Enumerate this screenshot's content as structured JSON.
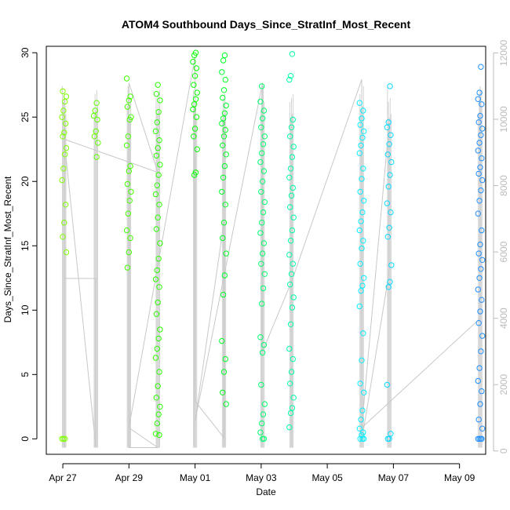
{
  "chart_data": {
    "type": "scatter",
    "title": "ATOM4 Southbound Days_Since_StratInf_Most_Recent",
    "xlabel": "Date",
    "ylabel": "Days_Since_StratInf_Most_Recent",
    "x_range": [
      "2026-04-26 12:00",
      "2026-05-09 19:00"
    ],
    "y_range": [
      -1.2,
      30.5
    ],
    "y2_range": [
      -100,
      12200
    ],
    "x_ticks": [
      "Apr 27",
      "Apr 29",
      "May 01",
      "May 03",
      "May 05",
      "May 07",
      "May 09"
    ],
    "x_tick_dates": [
      "2026-04-27",
      "2026-04-29",
      "2026-05-01",
      "2026-05-03",
      "2026-05-05",
      "2026-05-07",
      "2026-05-09"
    ],
    "y_ticks": [
      0,
      5,
      10,
      15,
      20,
      25,
      30
    ],
    "y2_ticks": [
      0,
      2000,
      4000,
      6000,
      8000,
      10000,
      12000
    ],
    "grid": false,
    "legend": "none",
    "marker": "open-circle",
    "point_color_gradient": [
      "#7fff00",
      "#00ff00",
      "#00ffff",
      "#1e90ff"
    ],
    "count_line_color": "#c8c8c8",
    "day_clusters": [
      {
        "date": "2026-04-27",
        "time": "01:00",
        "y": [
          0,
          0,
          0,
          14.5,
          15.7,
          16.8,
          18.2,
          20.1,
          21.0,
          22.1,
          22.6,
          23.5,
          23.8,
          24.5,
          25.0,
          25.5,
          26.2,
          26.6,
          27.0
        ]
      },
      {
        "date": "2026-04-28",
        "time": "00:00",
        "y": [
          21.9,
          23.0,
          23.5,
          23.9,
          24.8,
          25.1,
          25.5,
          26.1
        ]
      },
      {
        "date": "2026-04-29",
        "time": "00:00",
        "y": [
          13.3,
          14.5,
          15.6,
          16.2,
          17.5,
          18.5,
          19.2,
          19.8,
          20.8,
          21.2,
          22.8,
          23.5,
          24.8,
          25.0,
          25.8,
          26.3,
          26.6,
          28.0
        ]
      },
      {
        "date": "2026-04-29",
        "time": "21:00",
        "y": [
          0.3,
          0.4,
          1.2,
          1.9,
          2.5,
          3.2,
          4.1,
          5.2,
          6.3,
          7.0,
          7.8,
          8.5,
          9.7,
          10.6,
          11.8,
          12.4,
          13.1,
          14.0,
          15.2,
          16.3,
          17.2,
          18.2,
          19.0,
          19.7,
          20.5,
          21.3,
          22.0,
          22.6,
          23.2,
          23.9,
          24.6,
          25.4,
          26.3,
          26.8,
          27.5
        ]
      },
      {
        "date": "2026-05-01",
        "time": "00:00",
        "y": [
          20.5,
          20.7,
          22.5,
          23.5,
          24.1,
          25.0,
          25.6,
          26.0,
          26.4,
          26.9,
          27.5,
          28.2,
          28.8,
          29.3,
          29.8,
          30.0
        ]
      },
      {
        "date": "2026-05-01",
        "time": "21:00",
        "y": [
          2.7,
          3.6,
          5.2,
          6.2,
          7.6,
          11.2,
          12.7,
          14.4,
          15.6,
          16.8,
          18.2,
          19.2,
          20.3,
          21.2,
          22.1,
          22.8,
          23.5,
          24.0,
          24.5,
          24.9,
          25.3,
          25.9,
          26.5,
          27.1,
          27.9,
          28.5,
          29.4,
          29.8
        ]
      },
      {
        "date": "2026-05-03",
        "time": "01:00",
        "y": [
          0,
          0,
          0.5,
          1.2,
          1.9,
          2.7,
          4.2,
          6.7,
          7.3,
          7.9,
          10.5,
          11.7,
          12.8,
          13.6,
          14.4,
          15.2,
          16.0,
          16.8,
          17.6,
          18.4,
          19.2,
          20.0,
          20.8,
          21.5,
          22.2,
          22.9,
          23.5,
          24.2,
          24.9,
          25.5,
          26.2,
          27.4
        ]
      },
      {
        "date": "2026-05-03",
        "time": "22:00",
        "y": [
          0.9,
          2.0,
          2.4,
          3.2,
          4.3,
          5.2,
          6.2,
          7.0,
          8.9,
          10.2,
          11.0,
          12.0,
          12.8,
          13.6,
          14.3,
          15.4,
          16.2,
          17.2,
          18.0,
          18.9,
          19.5,
          20.3,
          21.0,
          21.9,
          22.7,
          23.5,
          24.2,
          24.8,
          27.9,
          28.2,
          29.9
        ]
      },
      {
        "date": "2026-05-06",
        "time": "01:00",
        "y": [
          0,
          0,
          0,
          0.3,
          0.5,
          0.8,
          1.5,
          2.2,
          3.6,
          4.3,
          6.1,
          8.2,
          10.3,
          11.5,
          11.9,
          12.5,
          13.6,
          14.8,
          15.4,
          16.2,
          16.9,
          17.6,
          18.5,
          19.2,
          20.2,
          21.0,
          22.2,
          22.8,
          23.4,
          23.9,
          24.4,
          24.9,
          25.5,
          26.1
        ]
      },
      {
        "date": "2026-05-06",
        "time": "21:00",
        "y": [
          0,
          0,
          0.4,
          4.2,
          11.8,
          12.2,
          13.5,
          15.7,
          16.4,
          17.6,
          18.3,
          19.6,
          20.5,
          21.5,
          22.1,
          22.9,
          23.6,
          24.2,
          24.6,
          27.4
        ]
      },
      {
        "date": "2026-05-09",
        "time": "15:00",
        "y": [
          0,
          0,
          0,
          0,
          0.8,
          1.5,
          2.7,
          3.7,
          4.5,
          5.5,
          6.8,
          8.0,
          9.0,
          9.9,
          10.8,
          11.6,
          12.5,
          13.2,
          13.9,
          14.4,
          15.1,
          16.2,
          17.5,
          18.5,
          19.3,
          20.1,
          20.6,
          21.1,
          21.8,
          22.4,
          23.0,
          23.6,
          24.1,
          24.6,
          25.1,
          26.0,
          26.4,
          26.9,
          28.9
        ]
      }
    ],
    "count_series": [
      {
        "date": "2026-04-27",
        "time": "01:00",
        "count": 10800
      },
      {
        "date": "2026-04-27",
        "time": "01:00",
        "count": 100
      },
      {
        "date": "2026-04-27",
        "time": "01:00",
        "count": 5200
      },
      {
        "date": "2026-04-28",
        "time": "00:00",
        "count": 5200
      },
      {
        "date": "2026-04-28",
        "time": "00:00",
        "count": 100
      },
      {
        "date": "2026-04-27",
        "time": "01:00",
        "count": 9400
      },
      {
        "date": "2026-04-29",
        "time": "21:00",
        "count": 8400
      },
      {
        "date": "2026-04-29",
        "time": "00:00",
        "count": 11100
      },
      {
        "date": "2026-04-29",
        "time": "00:00",
        "count": 100
      },
      {
        "date": "2026-04-29",
        "time": "21:00",
        "count": 100
      },
      {
        "date": "2026-04-29",
        "time": "00:00",
        "count": 700
      },
      {
        "date": "2026-05-01",
        "time": "00:00",
        "count": 11900
      },
      {
        "date": "2026-05-01",
        "time": "00:00",
        "count": 1500
      },
      {
        "date": "2026-05-01",
        "time": "21:00",
        "count": 400
      },
      {
        "date": "2026-05-01",
        "time": "21:00",
        "count": 6900
      },
      {
        "date": "2026-05-01",
        "time": "00:00",
        "count": 900
      },
      {
        "date": "2026-05-03",
        "time": "01:00",
        "count": 11100
      },
      {
        "date": "2026-05-03",
        "time": "01:00",
        "count": 3000
      },
      {
        "date": "2026-05-03",
        "time": "22:00",
        "count": 5100
      },
      {
        "date": "2026-05-06",
        "time": "01:00",
        "count": 11200
      },
      {
        "date": "2026-05-06",
        "time": "01:00",
        "count": 300
      },
      {
        "date": "2026-05-06",
        "time": "21:00",
        "count": 5400
      },
      {
        "date": "2026-05-06",
        "time": "21:00",
        "count": 9900
      },
      {
        "date": "2026-05-06",
        "time": "01:00",
        "count": 700
      },
      {
        "date": "2026-05-09",
        "time": "15:00",
        "count": 4000
      },
      {
        "date": "2026-05-09",
        "time": "15:00",
        "count": 11000
      }
    ]
  }
}
